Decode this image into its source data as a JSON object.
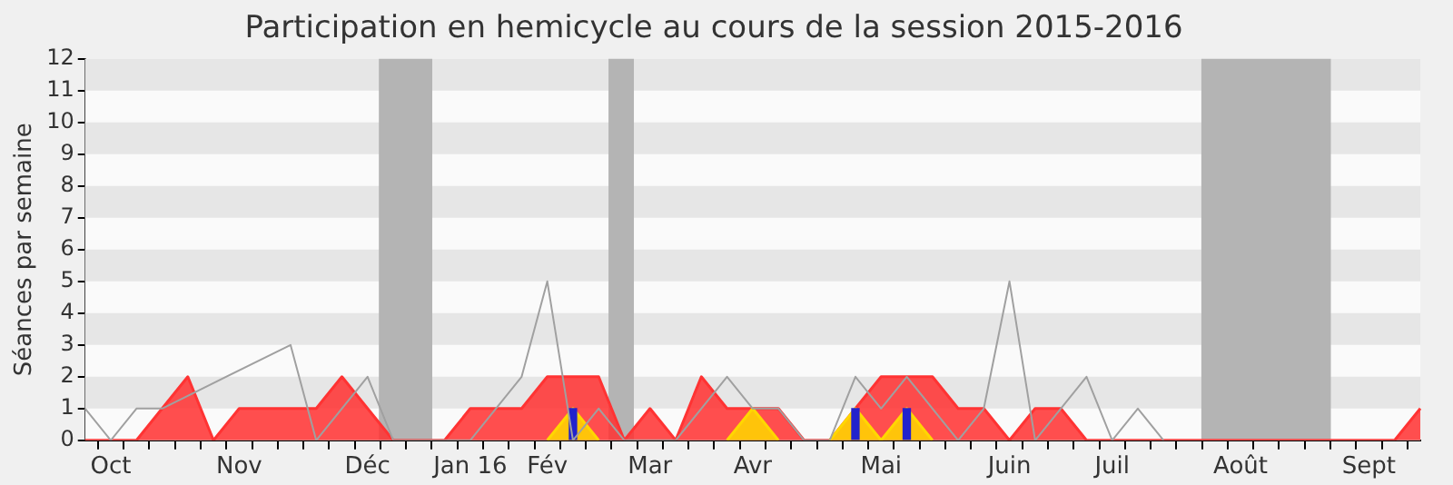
{
  "chart_data": {
    "type": "area",
    "title": "Participation en hemicycle au cours de la session 2015-2016",
    "ylabel": "Séances par semaine",
    "categories": [
      null,
      "Oct",
      null,
      null,
      null,
      null,
      "Nov",
      null,
      null,
      null,
      null,
      "Déc",
      null,
      null,
      null,
      "Jan 16",
      null,
      null,
      "Fév",
      null,
      null,
      null,
      "Mar",
      null,
      null,
      null,
      "Avr",
      null,
      null,
      null,
      null,
      "Mai",
      null,
      null,
      null,
      null,
      "Juin",
      null,
      null,
      null,
      "Juil",
      null,
      null,
      null,
      null,
      "Août",
      null,
      null,
      null,
      null,
      "Sept",
      null,
      null
    ],
    "series": [
      {
        "color": "#ff3333",
        "values": [
          0,
          0,
          0,
          1,
          2,
          0,
          1,
          1,
          1,
          1,
          2,
          1,
          0,
          0,
          0,
          1,
          1,
          1,
          2,
          2,
          2,
          0,
          1,
          0,
          2,
          1,
          1,
          1,
          0,
          0,
          1,
          2,
          2,
          2,
          1,
          1,
          0,
          1,
          1,
          0,
          0,
          0,
          0,
          0,
          0,
          0,
          0,
          0,
          0,
          0,
          0,
          0,
          1
        ]
      },
      {
        "type": "area",
        "color": "#ffd700",
        "values": [
          null,
          null,
          null,
          null,
          null,
          null,
          null,
          null,
          null,
          null,
          null,
          null,
          null,
          null,
          null,
          null,
          null,
          null,
          0,
          1,
          0,
          null,
          null,
          null,
          null,
          0,
          1,
          0,
          null,
          0,
          1,
          0,
          1,
          0,
          null,
          null,
          null,
          null,
          null,
          null,
          null,
          null,
          null,
          null,
          null,
          null,
          null,
          null,
          null,
          null,
          null,
          null,
          null
        ]
      },
      {
        "type": "bar",
        "color": "#2222cc",
        "values": [
          null,
          null,
          null,
          null,
          null,
          null,
          null,
          null,
          null,
          null,
          null,
          null,
          null,
          null,
          null,
          null,
          null,
          null,
          null,
          1,
          null,
          null,
          null,
          null,
          null,
          null,
          null,
          null,
          null,
          null,
          1,
          null,
          1,
          null,
          null,
          null,
          null,
          null,
          null,
          null,
          null,
          null,
          null,
          null,
          null,
          null,
          null,
          null,
          null,
          null,
          null,
          null,
          null
        ]
      },
      {
        "type": "line",
        "color": "#a0a0a0",
        "values": [
          1,
          0,
          1,
          1,
          null,
          null,
          null,
          null,
          3,
          0,
          1,
          2,
          0,
          0,
          0,
          0,
          1,
          2,
          5,
          0,
          1,
          0,
          0,
          0,
          1,
          2,
          1,
          1,
          0,
          0,
          2,
          1,
          2,
          1,
          0,
          1,
          5,
          0,
          1,
          2,
          0,
          1,
          0,
          null,
          null,
          null,
          null,
          null,
          null,
          null,
          null,
          null,
          null
        ]
      }
    ],
    "ylim": [
      0,
      12
    ],
    "yticks": [
      0,
      1,
      2,
      3,
      4,
      5,
      6,
      7,
      8,
      9,
      10,
      11,
      12
    ],
    "legend": false,
    "marker": "none"
  }
}
